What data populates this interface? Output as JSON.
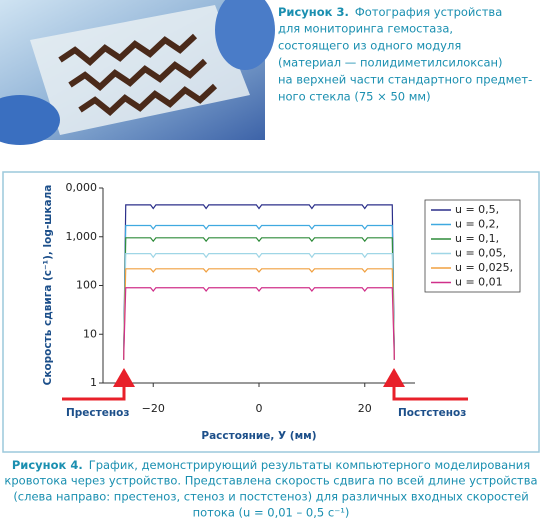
{
  "figure3": {
    "label": "Рисунок 3.",
    "lines": [
      "Фотография устройства",
      "для мониторинга гемостаза,",
      "состоящего из одного модуля",
      "(материал — полидиметилсилоксан)",
      "на верхней части стандартного предмет-",
      "ного стекла (75 × 50 мм)"
    ]
  },
  "chart_data": {
    "type": "line",
    "ylabel": "Скорость сдвига (с⁻¹), log-шкала",
    "xlabel": "Расстояние, У (мм)",
    "log_y": true,
    "xlim": [
      -29.5,
      29.5
    ],
    "ylim": [
      1,
      10000
    ],
    "xticks": [
      {
        "value": -20,
        "label": "−20"
      },
      0,
      20
    ],
    "yticks": [
      1,
      10,
      100,
      {
        "value": 1000,
        "label": "1,000"
      },
      {
        "value": 10000,
        "label": "0,000"
      }
    ],
    "legend": "right",
    "x": [
      -25.6,
      -25.2,
      -20.5,
      -20,
      -19.5,
      -10.5,
      -10,
      -9.5,
      -0.5,
      0,
      0.5,
      9.5,
      10,
      10.5,
      19.5,
      20,
      20.5,
      25.2,
      25.6
    ],
    "series": [
      {
        "name": "u = 0,5,",
        "color": "#2b2f8a",
        "values": [
          3,
          4500,
          4500,
          3800,
          4500,
          4500,
          3800,
          4500,
          4500,
          3800,
          4500,
          4500,
          3800,
          4500,
          4500,
          3800,
          4500,
          4500,
          3
        ]
      },
      {
        "name": "u = 0,2,",
        "color": "#3fa9e0",
        "values": [
          3,
          1700,
          1700,
          1450,
          1700,
          1700,
          1450,
          1700,
          1700,
          1450,
          1700,
          1700,
          1450,
          1700,
          1700,
          1450,
          1700,
          1700,
          3
        ]
      },
      {
        "name": "u = 0,1,",
        "color": "#2e8b3a",
        "values": [
          3,
          950,
          950,
          810,
          950,
          950,
          810,
          950,
          950,
          810,
          950,
          950,
          810,
          950,
          950,
          810,
          950,
          950,
          3
        ]
      },
      {
        "name": "u = 0,05,",
        "color": "#9fd6e6",
        "values": [
          3,
          450,
          450,
          380,
          450,
          450,
          380,
          450,
          450,
          380,
          450,
          450,
          380,
          450,
          450,
          380,
          450,
          450,
          3
        ]
      },
      {
        "name": "u = 0,025,",
        "color": "#f0a040",
        "values": [
          3,
          220,
          220,
          190,
          220,
          220,
          190,
          220,
          220,
          190,
          220,
          220,
          190,
          220,
          220,
          190,
          220,
          220,
          3
        ]
      },
      {
        "name": "u = 0,01",
        "color": "#d0308a",
        "values": [
          3,
          90,
          90,
          77,
          90,
          90,
          77,
          90,
          90,
          77,
          90,
          90,
          77,
          90,
          90,
          77,
          90,
          90,
          3
        ]
      }
    ]
  },
  "annotations": {
    "left": "Престеноз",
    "right": "Постстеноз"
  },
  "figure4": {
    "label": "Рисунок 4.",
    "lines": [
      "График, демонстрирующий результаты компьютерного моделирования",
      "кровотока через устройство. Представлена скорость сдвига по всей длине устройства",
      "(слева направо: престеноз, стеноз и постстеноз) для различных входных скоростей",
      "потока (u = 0,01 – 0,5 с⁻¹)"
    ]
  }
}
